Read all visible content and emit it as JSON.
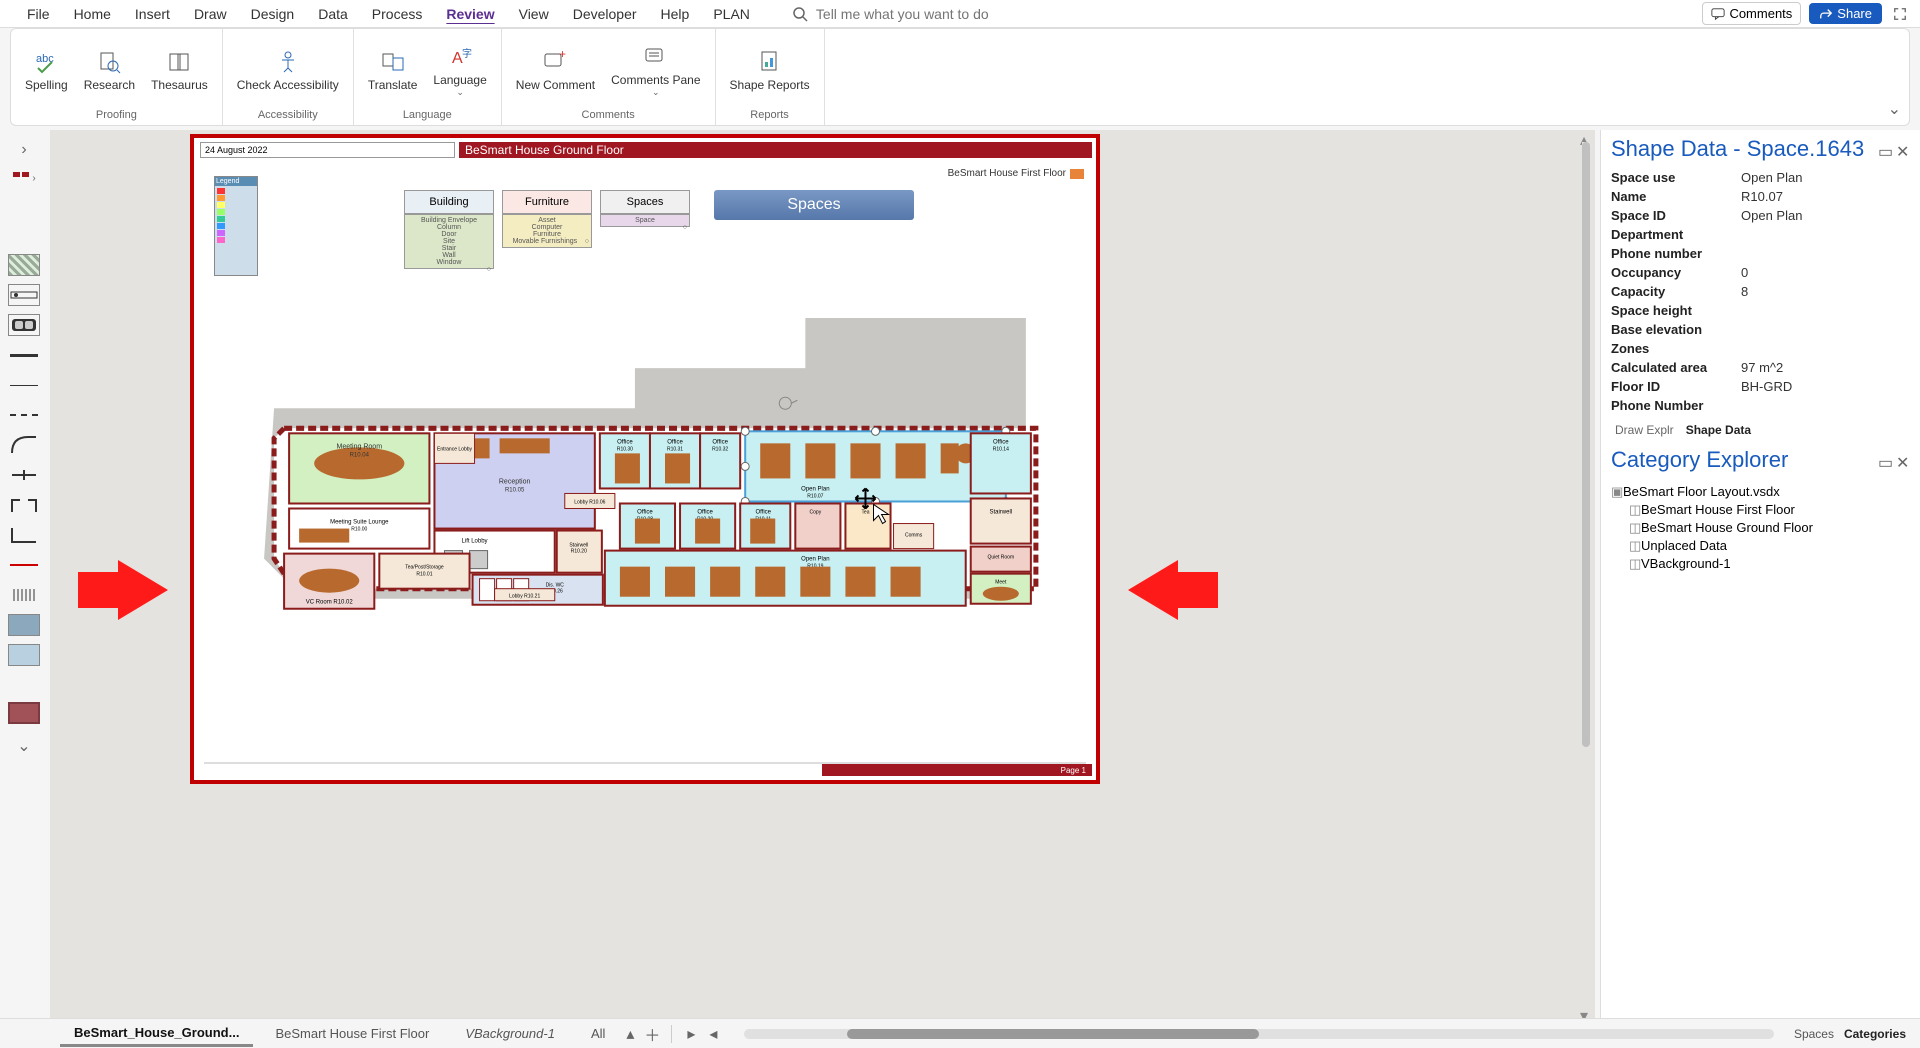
{
  "menu": {
    "items": [
      "File",
      "Home",
      "Insert",
      "Draw",
      "Design",
      "Data",
      "Process",
      "Review",
      "View",
      "Developer",
      "Help",
      "PLAN"
    ],
    "active_index": 7,
    "search_placeholder": "Tell me what you want to do",
    "comments": "Comments",
    "share": "Share"
  },
  "ribbon": {
    "groups": [
      {
        "label": "Proofing",
        "buttons": [
          "Spelling",
          "Research",
          "Thesaurus"
        ]
      },
      {
        "label": "Accessibility",
        "buttons": [
          "Check Accessibility"
        ]
      },
      {
        "label": "Language",
        "buttons": [
          "Translate",
          "Language"
        ]
      },
      {
        "label": "Comments",
        "buttons": [
          "New Comment",
          "Comments Pane"
        ]
      },
      {
        "label": "Reports",
        "buttons": [
          "Shape Reports"
        ]
      }
    ]
  },
  "page": {
    "date": "24 August 2022",
    "title": "BeSmart House Ground Floor",
    "nav": "BeSmart House First Floor",
    "legend_title": "Legend",
    "cat_heads": [
      "Building",
      "Furniture",
      "Spaces"
    ],
    "building_items": [
      "Building Envelope",
      "Column",
      "Door",
      "Site",
      "Stair",
      "Wall",
      "Window"
    ],
    "furniture_items": [
      "Asset",
      "Computer",
      "Furniture",
      "Movable Furnishings"
    ],
    "spaces_items": [
      "Space"
    ],
    "spaces_big": "Spaces",
    "footer": "Page 1",
    "rooms": [
      {
        "name": "Meeting Room",
        "id": "R10.04"
      },
      {
        "name": "Reception",
        "id": "R10.05"
      },
      {
        "name": "Entrance Lobby",
        "id": ""
      },
      {
        "name": "Meeting Suite Lounge",
        "id": "R10.00"
      },
      {
        "name": "Lift Lobby",
        "id": ""
      },
      {
        "name": "VC Room",
        "id": "R10.02"
      },
      {
        "name": "Tea/Post/Storage",
        "id": "R10.01"
      },
      {
        "name": "Lobby",
        "id": "R10.06"
      },
      {
        "name": "Office",
        "id": "R10.30"
      },
      {
        "name": "Office",
        "id": "R10.31"
      },
      {
        "name": "Office",
        "id": "R10.32"
      },
      {
        "name": "Open Plan",
        "id": "R10.07"
      },
      {
        "name": "Office",
        "id": "R10.14"
      },
      {
        "name": "Office",
        "id": "R10.08"
      },
      {
        "name": "Office",
        "id": "R10.20"
      },
      {
        "name": "Office",
        "id": "R10.11"
      },
      {
        "name": "Stairwell",
        "id": "R10.15"
      },
      {
        "name": "Comms",
        "id": "R10.35"
      },
      {
        "name": "Open Plan",
        "id": "R10.19"
      },
      {
        "name": "Quiet Room",
        "id": "R10.17"
      },
      {
        "name": "Meet",
        "id": "R10.16"
      },
      {
        "name": "Dis. WC",
        "id": "R10.26"
      },
      {
        "name": "Stairwell",
        "id": "R10.20"
      }
    ],
    "legend_colors": [
      "#ff3333",
      "#ff9933",
      "#ffff66",
      "#99ff66",
      "#33cc99",
      "#3399ff",
      "#cc66ff",
      "#ff66cc"
    ]
  },
  "shape_data": {
    "title": "Shape Data - Space.1643",
    "rows": [
      {
        "k": "Space use",
        "v": "Open Plan"
      },
      {
        "k": "Name",
        "v": "R10.07"
      },
      {
        "k": "Space ID",
        "v": "Open Plan"
      },
      {
        "k": "Department",
        "v": ""
      },
      {
        "k": "Phone number",
        "v": ""
      },
      {
        "k": "Occupancy",
        "v": "0"
      },
      {
        "k": "Capacity",
        "v": "8"
      },
      {
        "k": "Space height",
        "v": ""
      },
      {
        "k": "Base elevation",
        "v": ""
      },
      {
        "k": "Zones",
        "v": ""
      },
      {
        "k": "Calculated area",
        "v": "97 m^2"
      },
      {
        "k": "Floor ID",
        "v": "BH-GRD"
      },
      {
        "k": "Phone Number",
        "v": ""
      }
    ],
    "tabs": [
      "Draw Explr",
      "Shape Data"
    ],
    "active_tab": 1
  },
  "category_explorer": {
    "title": "Category Explorer",
    "root": "BeSmart Floor Layout.vsdx",
    "items": [
      "BeSmart House First Floor",
      "BeSmart House Ground Floor",
      "Unplaced Data",
      "VBackground-1"
    ]
  },
  "sheets": {
    "tabs": [
      {
        "label": "BeSmart_House_Ground...",
        "active": true,
        "italic": false
      },
      {
        "label": "BeSmart House First Floor",
        "active": false,
        "italic": false
      },
      {
        "label": "VBackground-1",
        "active": false,
        "italic": true
      },
      {
        "label": "All",
        "active": false,
        "italic": false
      }
    ]
  },
  "bottom_right": {
    "tabs": [
      "Spaces",
      "Categories"
    ],
    "active": 1
  }
}
